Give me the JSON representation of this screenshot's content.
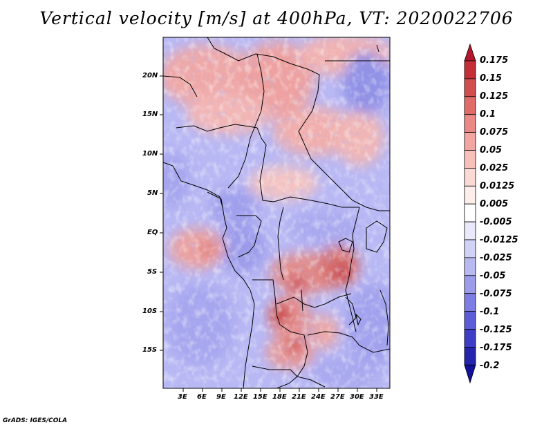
{
  "title": "Vertical velocity [m/s] at 400hPa, VT: 2020022706",
  "credit": "GrADS: IGES/COLA",
  "lat_labels": [
    "20N",
    "15N",
    "10N",
    "5N",
    "EQ",
    "5S",
    "10S",
    "15S"
  ],
  "lon_labels": [
    "3E",
    "6E",
    "9E",
    "12E",
    "15E",
    "18E",
    "21E",
    "24E",
    "27E",
    "30E",
    "33E"
  ],
  "colorbar": {
    "labels": [
      "0.175",
      "0.15",
      "0.125",
      "0.1",
      "0.075",
      "0.05",
      "0.025",
      "0.0125",
      "0.005",
      "-0.005",
      "-0.0125",
      "-0.025",
      "-0.05",
      "-0.075",
      "-0.1",
      "-0.125",
      "-0.175",
      "-0.2"
    ],
    "colors": [
      "#b2182b",
      "#c42e36",
      "#d24d4f",
      "#e06c6a",
      "#ea8986",
      "#f2a6a1",
      "#f7c0bb",
      "#fbdad6",
      "#fdeeec",
      "#ffffff",
      "#e9e9fb",
      "#d2d2f7",
      "#b9b9f1",
      "#9c9ceb",
      "#7d7de3",
      "#5c5cd6",
      "#3d3dc6",
      "#2424ad",
      "#11119a"
    ]
  }
}
